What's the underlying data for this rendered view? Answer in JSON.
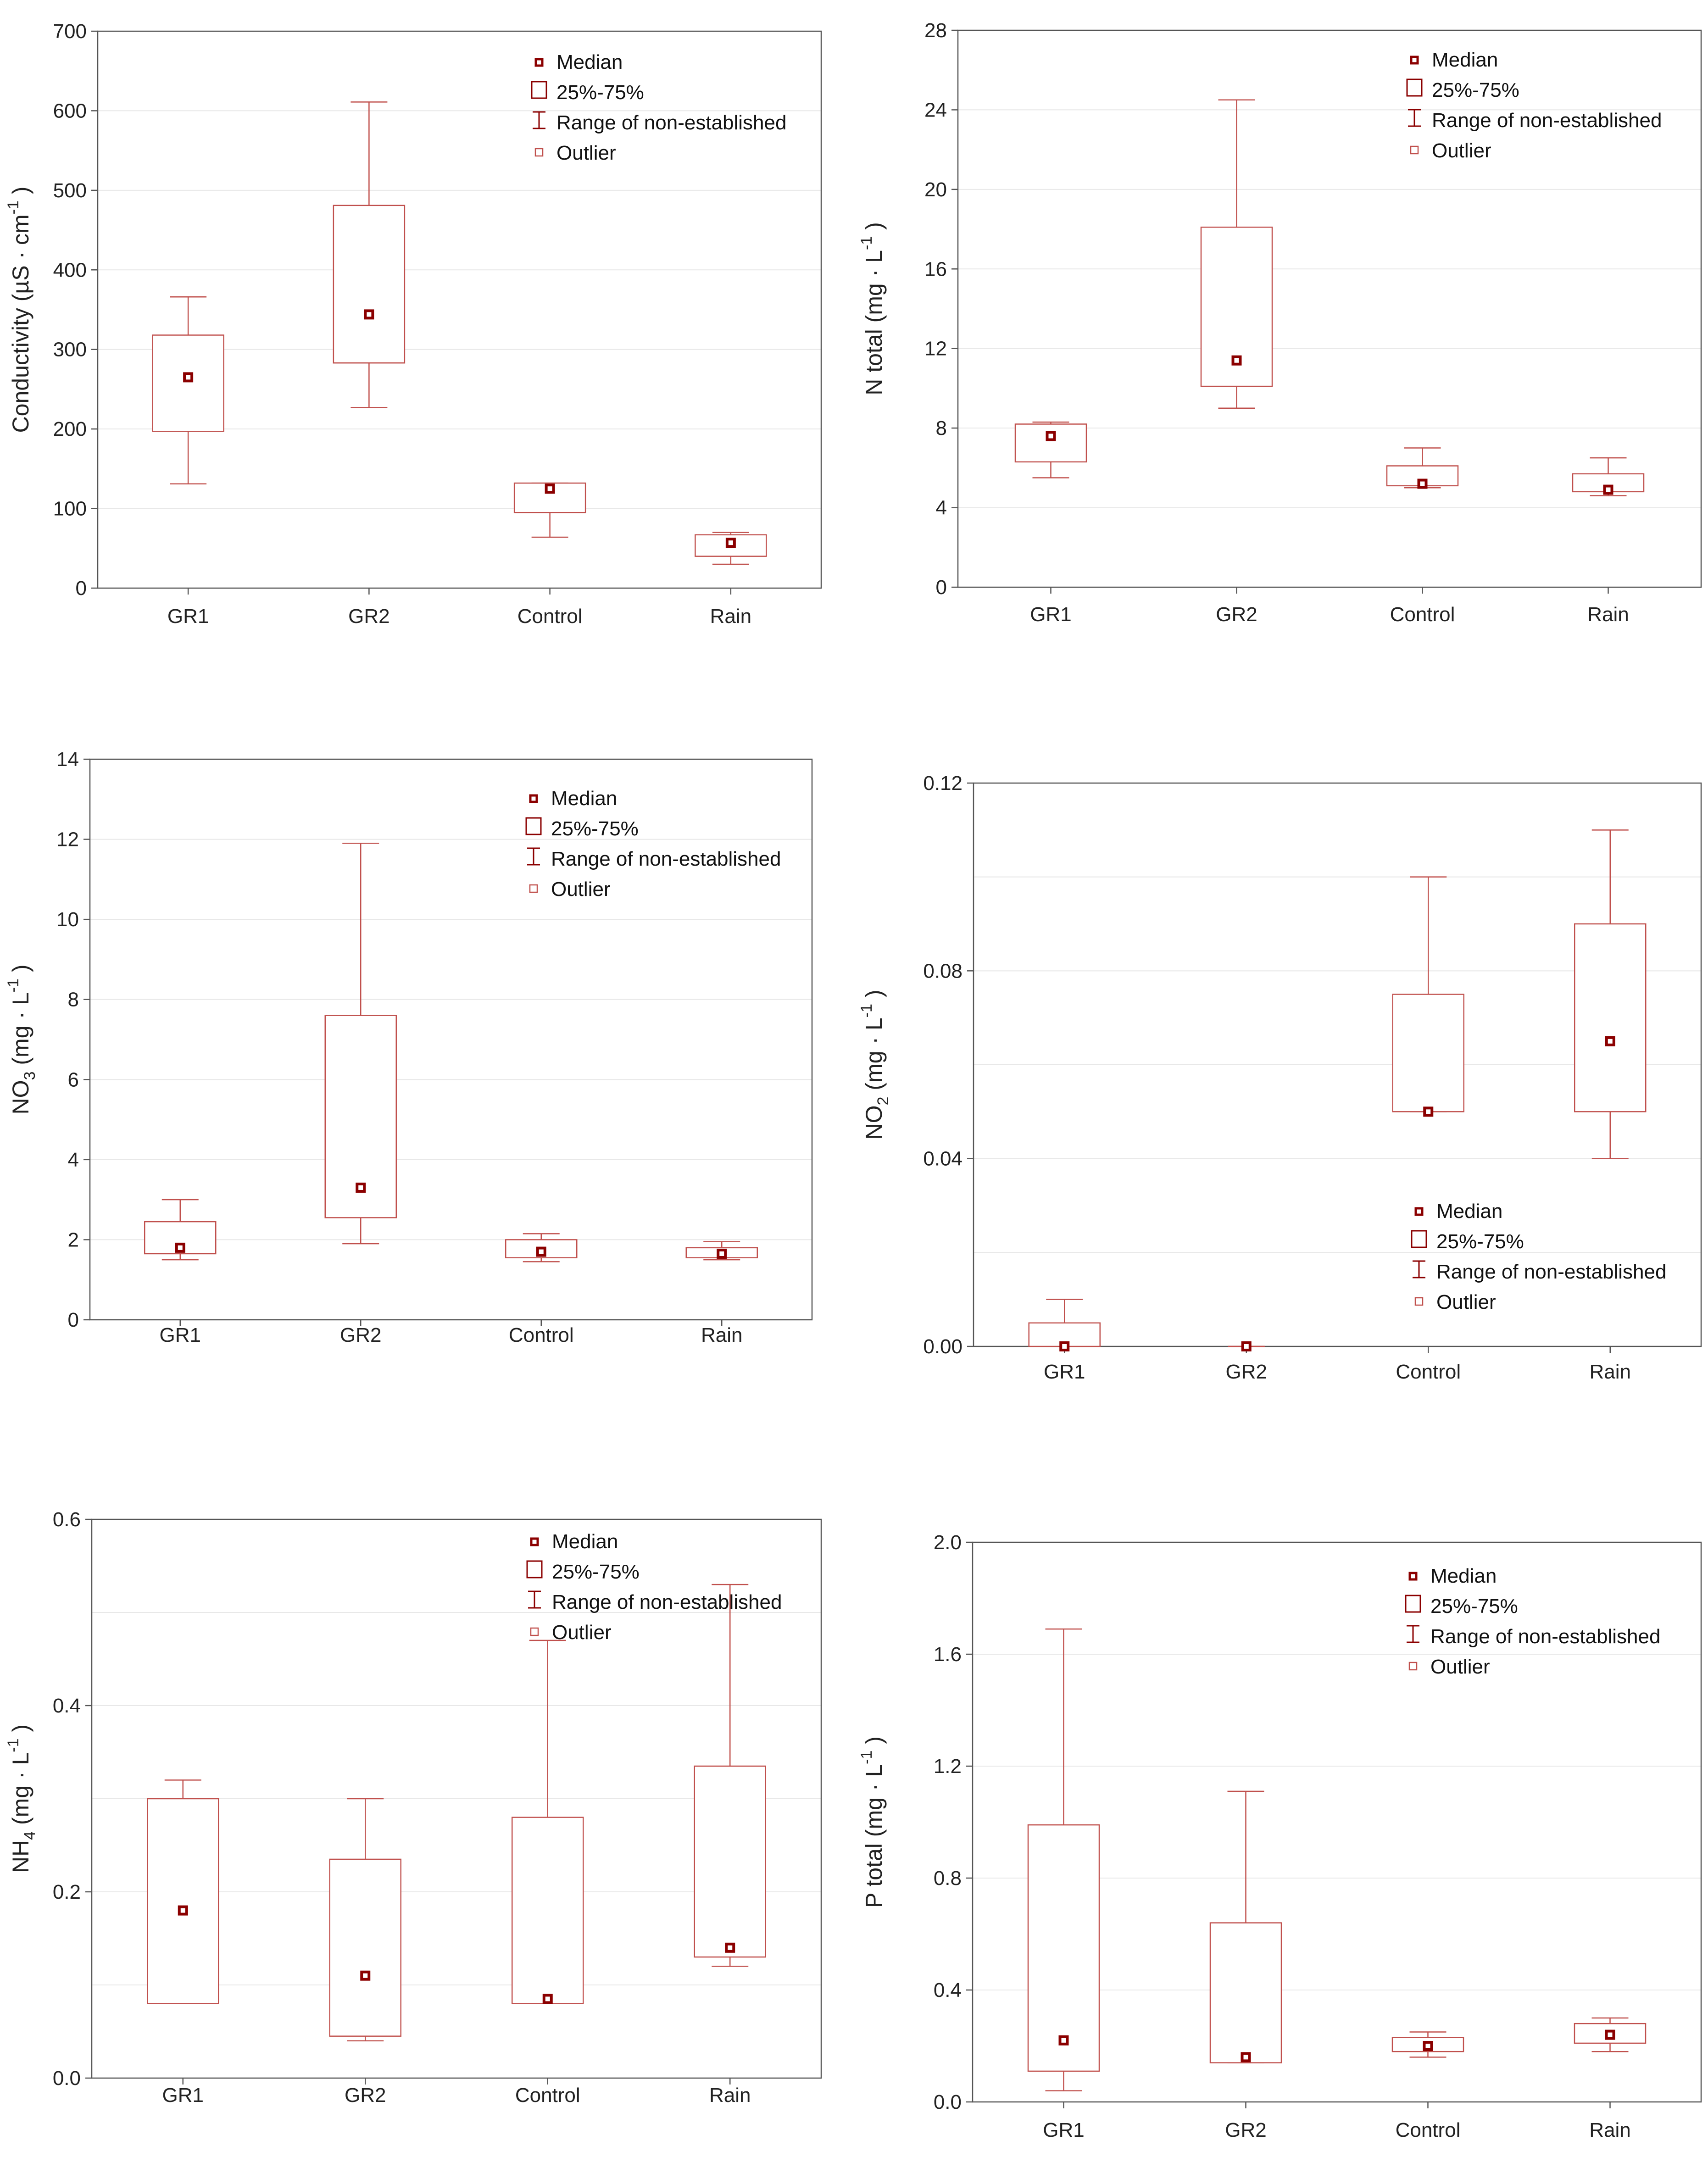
{
  "chart_data": [
    {
      "type": "box",
      "ylabel": {
        "base": "Conductivity (µS · cm",
        "sup": "-1",
        "close": " )"
      },
      "categories": [
        "GR1",
        "GR2",
        "Control",
        "Rain"
      ],
      "ylim": [
        0,
        700
      ],
      "yticks": [
        0,
        100,
        200,
        300,
        400,
        500,
        600,
        700
      ],
      "ytick_labels": [
        "0",
        "100",
        "200",
        "300",
        "400",
        "500",
        "600",
        "700"
      ],
      "grid": true,
      "legend_position": "top-right",
      "legend": [
        "Median",
        "25%-75%",
        "Range of non-established",
        "Outlier"
      ],
      "boxes": [
        {
          "category": "GR1",
          "q1": 197,
          "q3": 318,
          "median": 265,
          "min": 131,
          "max": 366
        },
        {
          "category": "GR2",
          "q1": 283,
          "q3": 481,
          "median": 344,
          "min": 227,
          "max": 611
        },
        {
          "category": "Control",
          "q1": 95,
          "q3": 132,
          "median": 125,
          "min": 64,
          "max": 132
        },
        {
          "category": "Rain",
          "q1": 40,
          "q3": 67,
          "median": 57,
          "min": 30,
          "max": 70
        }
      ]
    },
    {
      "type": "box",
      "ylabel": {
        "base": "N total (mg · L",
        "sup": "-1",
        "close": " )"
      },
      "categories": [
        "GR1",
        "GR2",
        "Control",
        "Rain"
      ],
      "ylim": [
        0,
        28
      ],
      "yticks": [
        0,
        4,
        8,
        12,
        16,
        20,
        24,
        28
      ],
      "ytick_labels": [
        "0",
        "4",
        "8",
        "12",
        "16",
        "20",
        "24",
        "28"
      ],
      "grid": true,
      "legend_position": "top-right",
      "legend": [
        "Median",
        "25%-75%",
        "Range of non-established",
        "Outlier"
      ],
      "boxes": [
        {
          "category": "GR1",
          "q1": 6.3,
          "q3": 8.2,
          "median": 7.6,
          "min": 5.5,
          "max": 8.3
        },
        {
          "category": "GR2",
          "q1": 10.1,
          "q3": 18.1,
          "median": 11.4,
          "min": 9.0,
          "max": 24.5
        },
        {
          "category": "Control",
          "q1": 5.1,
          "q3": 6.1,
          "median": 5.2,
          "min": 5.0,
          "max": 7.0
        },
        {
          "category": "Rain",
          "q1": 4.8,
          "q3": 5.7,
          "median": 4.9,
          "min": 4.6,
          "max": 6.5
        }
      ]
    },
    {
      "type": "box",
      "ylabel": {
        "base": "NO",
        "sub": "3",
        "rest": " (mg · L",
        "sup": "-1",
        "close": " )"
      },
      "categories": [
        "GR1",
        "GR2",
        "Control",
        "Rain"
      ],
      "ylim": [
        0,
        14
      ],
      "yticks": [
        0,
        2,
        4,
        6,
        8,
        10,
        12,
        14
      ],
      "ytick_labels": [
        "0",
        "2",
        "4",
        "6",
        "8",
        "10",
        "12",
        "14"
      ],
      "grid": true,
      "legend_position": "top-right",
      "legend": [
        "Median",
        "25%-75%",
        "Range of non-established",
        "Outlier"
      ],
      "boxes": [
        {
          "category": "GR1",
          "q1": 1.65,
          "q3": 2.45,
          "median": 1.8,
          "min": 1.5,
          "max": 3.0
        },
        {
          "category": "GR2",
          "q1": 2.55,
          "q3": 7.6,
          "median": 3.3,
          "min": 1.9,
          "max": 11.9
        },
        {
          "category": "Control",
          "q1": 1.55,
          "q3": 2.0,
          "median": 1.7,
          "min": 1.45,
          "max": 2.15
        },
        {
          "category": "Rain",
          "q1": 1.55,
          "q3": 1.8,
          "median": 1.65,
          "min": 1.5,
          "max": 1.95
        }
      ]
    },
    {
      "type": "box",
      "ylabel": {
        "base": "NO",
        "sub": "2",
        "rest": " (mg · L",
        "sup": "-1",
        "close": " )"
      },
      "categories": [
        "GR1",
        "GR2",
        "Control",
        "Rain"
      ],
      "ylim": [
        0,
        0.12
      ],
      "yticks": [
        0,
        0.04,
        0.08,
        0.12
      ],
      "ytick_labels": [
        "0.00",
        "0.04",
        "0.08",
        "0.12"
      ],
      "gridlines": [
        0.02,
        0.04,
        0.06,
        0.08,
        0.1
      ],
      "grid": true,
      "legend_position": "bottom-right",
      "legend": [
        "Median",
        "25%-75%",
        "Range of non-established",
        "Outlier"
      ],
      "boxes": [
        {
          "category": "GR1",
          "q1": 0.0,
          "q3": 0.005,
          "median": 0.0,
          "min": 0.0,
          "max": 0.01
        },
        {
          "category": "GR2",
          "q1": 0.0,
          "q3": 0.0,
          "median": 0.0,
          "min": 0.0,
          "max": 0.0
        },
        {
          "category": "Control",
          "q1": 0.05,
          "q3": 0.075,
          "median": 0.05,
          "min": 0.05,
          "max": 0.1
        },
        {
          "category": "Rain",
          "q1": 0.05,
          "q3": 0.09,
          "median": 0.065,
          "min": 0.04,
          "max": 0.11
        }
      ]
    },
    {
      "type": "box",
      "ylabel": {
        "base": "NH",
        "sub": "4",
        "rest": " (mg · L",
        "sup": "-1",
        "close": " )"
      },
      "categories": [
        "GR1",
        "GR2",
        "Control",
        "Rain"
      ],
      "ylim": [
        0,
        0.6
      ],
      "yticks": [
        0,
        0.2,
        0.4,
        0.6
      ],
      "ytick_labels": [
        "0.0",
        "0.2",
        "0.4",
        "0.6"
      ],
      "gridlines": [
        0.1,
        0.2,
        0.3,
        0.4,
        0.5
      ],
      "grid": true,
      "legend_position": "top-right",
      "legend": [
        "Median",
        "25%-75%",
        "Range of non-established",
        "Outlier"
      ],
      "boxes": [
        {
          "category": "GR1",
          "q1": 0.08,
          "q3": 0.3,
          "median": 0.18,
          "min": 0.08,
          "max": 0.32
        },
        {
          "category": "GR2",
          "q1": 0.045,
          "q3": 0.235,
          "median": 0.11,
          "min": 0.04,
          "max": 0.3
        },
        {
          "category": "Control",
          "q1": 0.08,
          "q3": 0.28,
          "median": 0.085,
          "min": 0.08,
          "max": 0.47
        },
        {
          "category": "Rain",
          "q1": 0.13,
          "q3": 0.335,
          "median": 0.14,
          "min": 0.12,
          "max": 0.53
        }
      ]
    },
    {
      "type": "box",
      "ylabel": {
        "base": "P total (mg · L",
        "sup": "-1",
        "close": " )"
      },
      "categories": [
        "GR1",
        "GR2",
        "Control",
        "Rain"
      ],
      "ylim": [
        0,
        2.0
      ],
      "yticks": [
        0,
        0.4,
        0.8,
        1.2,
        1.6,
        2.0
      ],
      "ytick_labels": [
        "0.0",
        "0.4",
        "0.8",
        "1.2",
        "1.6",
        "2.0"
      ],
      "grid": true,
      "legend_position": "top-right",
      "legend": [
        "Median",
        "25%-75%",
        "Range of non-established",
        "Outlier"
      ],
      "boxes": [
        {
          "category": "GR1",
          "q1": 0.11,
          "q3": 0.99,
          "median": 0.22,
          "min": 0.04,
          "max": 1.69
        },
        {
          "category": "GR2",
          "q1": 0.14,
          "q3": 0.64,
          "median": 0.16,
          "min": 0.14,
          "max": 1.11
        },
        {
          "category": "Control",
          "q1": 0.18,
          "q3": 0.23,
          "median": 0.2,
          "min": 0.16,
          "max": 0.25
        },
        {
          "category": "Rain",
          "q1": 0.21,
          "q3": 0.28,
          "median": 0.24,
          "min": 0.18,
          "max": 0.3
        }
      ]
    }
  ]
}
